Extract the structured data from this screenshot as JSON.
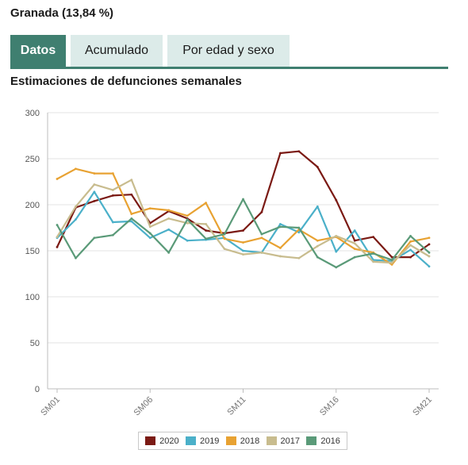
{
  "header": {
    "title": "Granada (13,84 %)"
  },
  "tabs": [
    {
      "label": "Datos",
      "active": true
    },
    {
      "label": "Acumulado",
      "active": false
    },
    {
      "label": "Por edad y sexo",
      "active": false
    }
  ],
  "chart_data": {
    "type": "line",
    "title": "Estimaciones de defunciones semanales",
    "xlabel": "",
    "ylabel": "",
    "ylim": [
      0,
      300
    ],
    "yticks": [
      0,
      50,
      100,
      150,
      200,
      250,
      300
    ],
    "categories": [
      "SM01",
      "SM02",
      "SM03",
      "SM04",
      "SM05",
      "SM06",
      "SM07",
      "SM08",
      "SM09",
      "SM10",
      "SM11",
      "SM12",
      "SM13",
      "SM14",
      "SM15",
      "SM16",
      "SM17",
      "SM18",
      "SM19",
      "SM20",
      "SM21"
    ],
    "xtick_labels": [
      "SM01",
      "SM06",
      "SM11",
      "SM16",
      "SM21"
    ],
    "grid": true,
    "legend_position": "bottom",
    "series": [
      {
        "name": "2020",
        "color": "#7b1a14",
        "values": [
          154,
          197,
          204,
          210,
          211,
          180,
          193,
          185,
          172,
          169,
          172,
          192,
          256,
          258,
          241,
          205,
          161,
          165,
          143,
          143,
          157
        ]
      },
      {
        "name": "2019",
        "color": "#4bb0c9",
        "values": [
          164,
          184,
          214,
          181,
          182,
          164,
          173,
          161,
          162,
          164,
          150,
          148,
          179,
          170,
          198,
          149,
          172,
          140,
          139,
          151,
          133
        ]
      },
      {
        "name": "2018",
        "color": "#e8a232",
        "values": [
          228,
          239,
          234,
          234,
          190,
          196,
          194,
          188,
          202,
          163,
          159,
          164,
          153,
          173,
          161,
          165,
          152,
          148,
          135,
          160,
          164
        ]
      },
      {
        "name": "2017",
        "color": "#c8bc8e",
        "values": [
          165,
          198,
          222,
          216,
          227,
          176,
          185,
          180,
          179,
          152,
          146,
          148,
          144,
          142,
          155,
          166,
          158,
          138,
          137,
          156,
          144
        ]
      },
      {
        "name": "2016",
        "color": "#5a9a78",
        "values": [
          178,
          142,
          164,
          167,
          185,
          169,
          148,
          184,
          163,
          168,
          206,
          168,
          176,
          175,
          143,
          132,
          143,
          147,
          140,
          166,
          148
        ]
      }
    ]
  }
}
